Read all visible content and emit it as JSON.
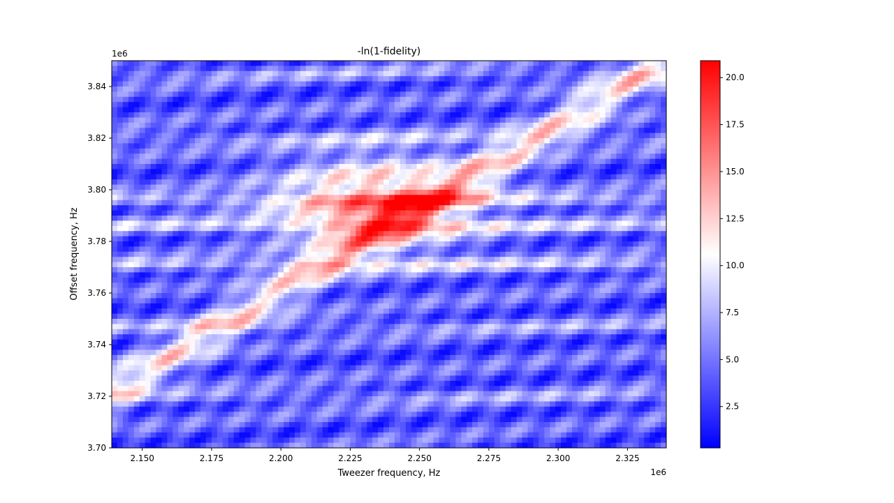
{
  "chart_data": {
    "type": "heatmap",
    "title": "-ln(1-fidelity)",
    "xlabel": "Tweezer frequency, Hz",
    "ylabel": "Offset frequency, Hz",
    "x_multiplier": "1e6",
    "y_multiplier": "1e6",
    "xlim": [
      2.139,
      2.339
    ],
    "ylim": [
      3.7,
      3.85
    ],
    "x_ticks": [
      2.15,
      2.175,
      2.2,
      2.225,
      2.25,
      2.275,
      2.3,
      2.325
    ],
    "x_tick_labels": [
      "2.150",
      "2.175",
      "2.200",
      "2.225",
      "2.250",
      "2.275",
      "2.300",
      "2.325"
    ],
    "y_ticks": [
      3.7,
      3.72,
      3.74,
      3.76,
      3.78,
      3.8,
      3.82,
      3.84
    ],
    "y_tick_labels": [
      "3.70",
      "3.72",
      "3.74",
      "3.76",
      "3.78",
      "3.80",
      "3.82",
      "3.84"
    ],
    "colorbar": {
      "colormap": "bwr",
      "range": [
        0.3,
        20.9
      ],
      "ticks": [
        2.5,
        5.0,
        7.5,
        10.0,
        12.5,
        15.0,
        17.5,
        20.0
      ],
      "tick_labels": [
        "2.5",
        "5.0",
        "7.5",
        "10.0",
        "12.5",
        "15.0",
        "17.5",
        "20.0"
      ],
      "colors": {
        "low": "#0000ff",
        "mid": "#ffffff",
        "high": "#ff0000"
      }
    },
    "features": {
      "peak_value": 20.9,
      "peak_location": [
        2.235,
        3.795
      ],
      "diagonal_ridge": {
        "start": [
          2.175,
          3.745
        ],
        "end": [
          2.339,
          3.85
        ]
      },
      "horizontal_bands_y": [
        3.796,
        3.786,
        3.771,
        3.747,
        3.82,
        3.845,
        3.72
      ]
    },
    "grid": false
  }
}
